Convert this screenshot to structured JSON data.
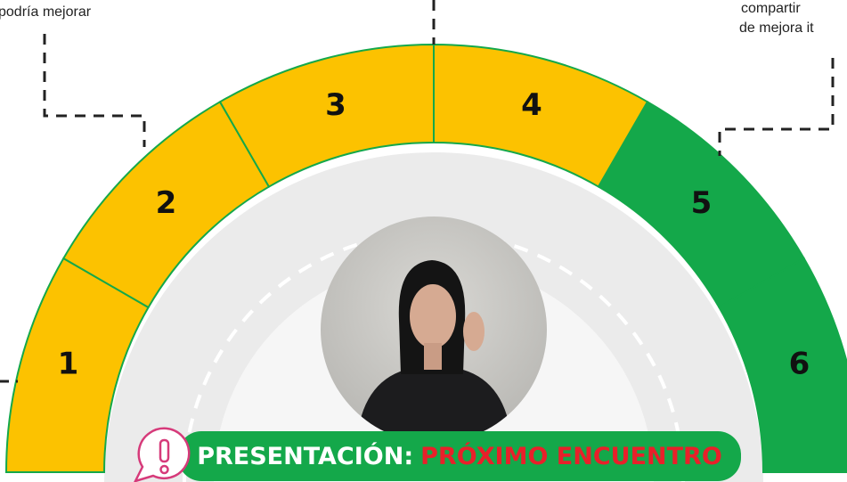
{
  "annotations": {
    "left_top": "podría mejorar",
    "right_top_1": "compartir",
    "right_top_2": "de mejora it"
  },
  "segments": [
    {
      "label": "1",
      "color": "#fcc200"
    },
    {
      "label": "2",
      "color": "#fcc200"
    },
    {
      "label": "3",
      "color": "#fcc200"
    },
    {
      "label": "4",
      "color": "#fcc200"
    },
    {
      "label": "5",
      "color": "#14a84a"
    },
    {
      "label": "6",
      "color": "#14a84a"
    }
  ],
  "banner": {
    "prefix": "PRESENTACIÓN:",
    "highlight": "PRÓXIMO ENCUENTRO"
  }
}
